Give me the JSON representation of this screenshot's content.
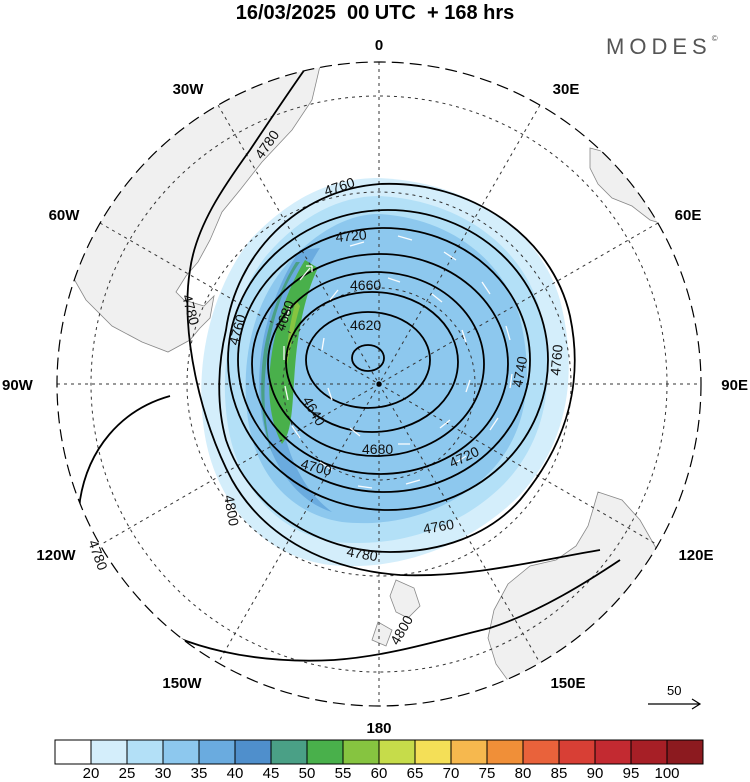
{
  "title": "16/03/2025  00 UTC  + 168 hrs",
  "brand": "MODES",
  "brand_mark": "©",
  "map": {
    "projection": "south polar stereographic",
    "longitude_labels": {
      "top": "0",
      "bottom": "180",
      "left": "90W",
      "right": "90E",
      "upper_left_30": "30W",
      "upper_left_60": "60W",
      "upper_right_30": "30E",
      "upper_right_60": "60E",
      "lower_left_120": "120W",
      "lower_left_150": "150W",
      "lower_right_120": "120E",
      "lower_right_150": "150E"
    },
    "contour_labels": [
      "4780",
      "4760",
      "4720",
      "4680",
      "4660",
      "4620",
      "4640",
      "4780",
      "4760",
      "4700",
      "4680",
      "4720",
      "4740",
      "4760",
      "4800",
      "4780",
      "4760",
      "4780",
      "4800"
    ],
    "contour_levels_m": [
      4620,
      4640,
      4660,
      4680,
      4700,
      4720,
      4740,
      4760,
      4780,
      4800
    ],
    "shading": "wind speed, colored by colorbar bins",
    "wind_vectors": "white arrows, cyclonic circulation",
    "vector_scale_label": "50"
  },
  "colorbar": {
    "ticks": [
      "20",
      "25",
      "30",
      "35",
      "40",
      "45",
      "50",
      "55",
      "60",
      "65",
      "70",
      "75",
      "80",
      "85",
      "90",
      "95",
      "100"
    ],
    "colors": [
      "#ffffff",
      "#d4eefb",
      "#b3e0f7",
      "#8dc8ee",
      "#6aabdf",
      "#4f8fcc",
      "#4aa086",
      "#49b04b",
      "#86c440",
      "#c6dc4a",
      "#f4df57",
      "#f6b84e",
      "#f08f38",
      "#e9623b",
      "#d83f35",
      "#c32a31",
      "#a71f26",
      "#8c1a1f"
    ]
  },
  "colors": {
    "land": "#f0f0f0",
    "contour": "#000000",
    "grid": "#333333"
  }
}
